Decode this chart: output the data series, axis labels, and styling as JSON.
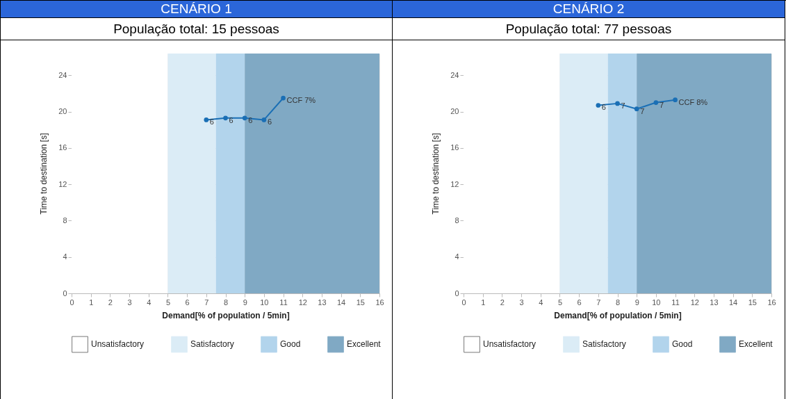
{
  "chart_data": [
    {
      "type": "line",
      "title": "CENÁRIO 1",
      "subtitle": "População total: 15 pessoas",
      "xlabel": "Demand[% of population / 5min]",
      "ylabel": "Time to destination [s]",
      "x": [
        7,
        8,
        9,
        10,
        11
      ],
      "series": [
        {
          "color": "#1a6fb5",
          "values": [
            19.1,
            19.3,
            19.3,
            19.1,
            21.5
          ]
        }
      ],
      "annotations": [
        {
          "text": "6",
          "x": 7,
          "y": 19.1
        },
        {
          "text": "6",
          "x": 8,
          "y": 19.3
        },
        {
          "text": "6",
          "x": 9,
          "y": 19.3
        },
        {
          "text": "6",
          "x": 10,
          "y": 19.1
        },
        {
          "text": "CCF 7%",
          "x": 11,
          "y": 21.5
        }
      ],
      "bands": [
        {
          "axis": "x",
          "from": 0,
          "to": 5,
          "label": "Unsatisfactory",
          "color": "#ffffff"
        },
        {
          "axis": "x",
          "from": 5,
          "to": 7.5,
          "label": "Satisfactory",
          "color": "#dbecf6"
        },
        {
          "axis": "x",
          "from": 7.5,
          "to": 9,
          "label": "Good",
          "color": "#b2d4ec"
        },
        {
          "axis": "x",
          "from": 9,
          "to": 16,
          "label": "Excellent",
          "color": "#80a9c4"
        }
      ],
      "xlim": [
        0,
        16
      ],
      "xticks": [
        0,
        1,
        2,
        3,
        4,
        5,
        6,
        7,
        8,
        9,
        10,
        11,
        12,
        13,
        14,
        15,
        16
      ],
      "ylim": [
        0,
        26.4
      ],
      "yticks": [
        0,
        4,
        8,
        12,
        16,
        20,
        24
      ],
      "grid": true,
      "legend": "bottom",
      "marker": "circle",
      "line_style": "solid"
    },
    {
      "type": "line",
      "title": "CENÁRIO 2",
      "subtitle": "População total: 77 pessoas",
      "xlabel": "Demand[% of population / 5min]",
      "ylabel": "Time to destination [s]",
      "x": [
        7,
        8,
        9,
        10,
        11
      ],
      "series": [
        {
          "color": "#1a6fb5",
          "values": [
            20.7,
            20.9,
            20.3,
            21.0,
            21.3
          ]
        }
      ],
      "annotations": [
        {
          "text": "6",
          "x": 7,
          "y": 20.7
        },
        {
          "text": "7",
          "x": 8,
          "y": 20.9
        },
        {
          "text": "7",
          "x": 9,
          "y": 20.3
        },
        {
          "text": "7",
          "x": 10,
          "y": 21.0
        },
        {
          "text": "CCF 8%",
          "x": 11,
          "y": 21.3
        }
      ],
      "bands": [
        {
          "axis": "x",
          "from": 0,
          "to": 5,
          "label": "Unsatisfactory",
          "color": "#ffffff"
        },
        {
          "axis": "x",
          "from": 5,
          "to": 7.5,
          "label": "Satisfactory",
          "color": "#dbecf6"
        },
        {
          "axis": "x",
          "from": 7.5,
          "to": 9,
          "label": "Good",
          "color": "#b2d4ec"
        },
        {
          "axis": "x",
          "from": 9,
          "to": 16,
          "label": "Excellent",
          "color": "#80a9c4"
        }
      ],
      "xlim": [
        0,
        16
      ],
      "xticks": [
        0,
        1,
        2,
        3,
        4,
        5,
        6,
        7,
        8,
        9,
        10,
        11,
        12,
        13,
        14,
        15,
        16
      ],
      "ylim": [
        0,
        26.4
      ],
      "yticks": [
        0,
        4,
        8,
        12,
        16,
        20,
        24
      ],
      "grid": true,
      "legend": "bottom",
      "marker": "circle",
      "line_style": "solid"
    }
  ]
}
